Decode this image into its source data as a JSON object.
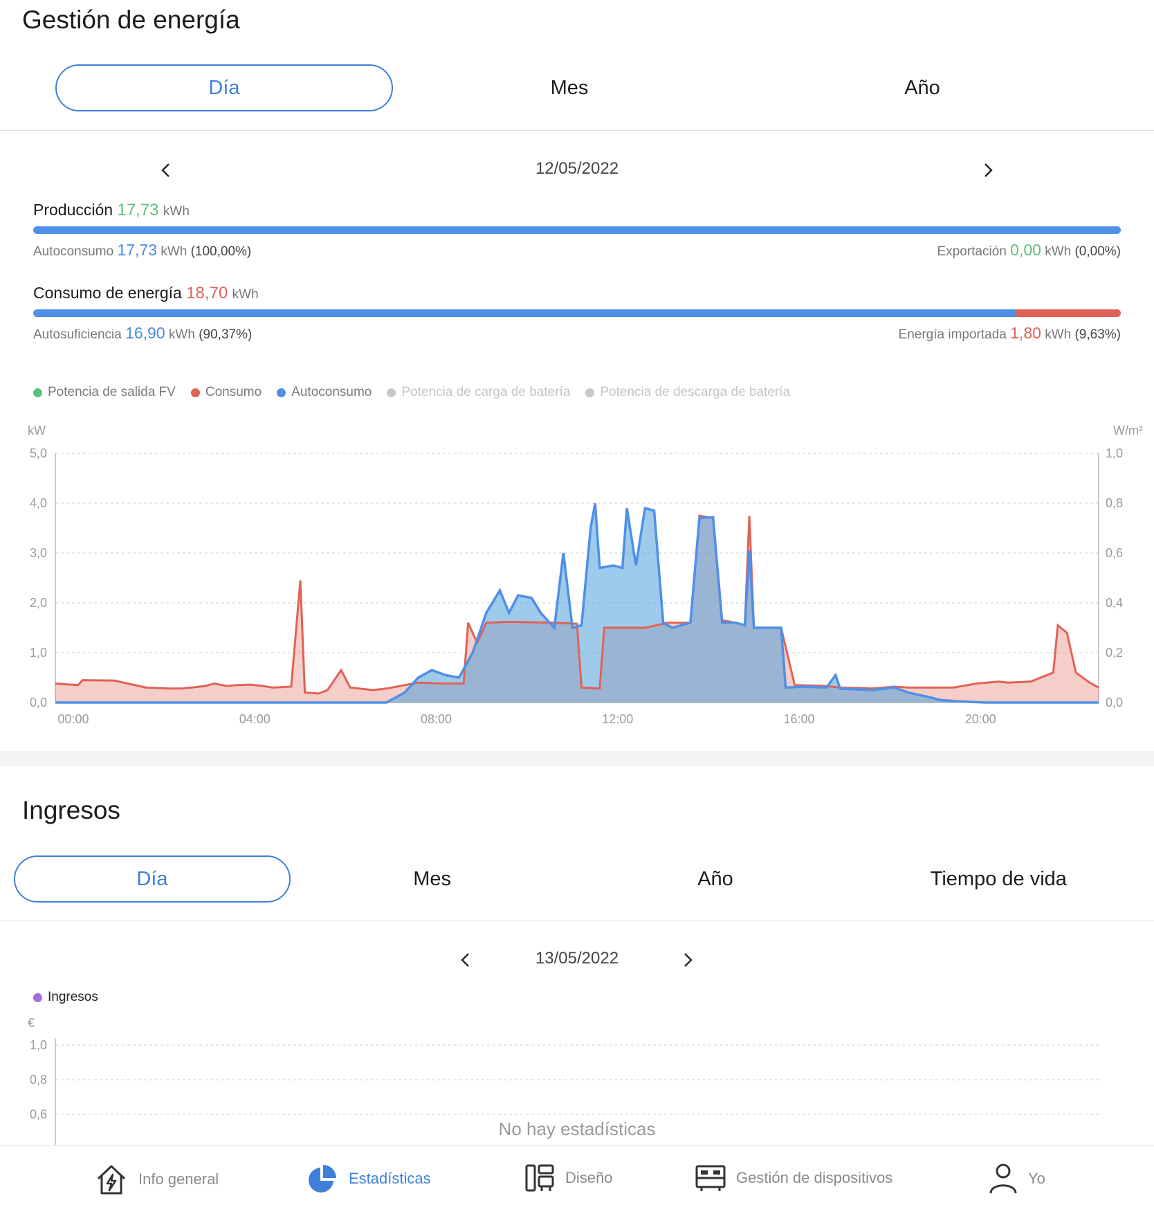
{
  "energy": {
    "title": "Gestión de energía",
    "tabs": [
      "Día",
      "Mes",
      "Año"
    ],
    "date": "12/05/2022",
    "production": {
      "label": "Producción",
      "value": "17,73",
      "unit": "kWh",
      "left": {
        "label": "Autoconsumo",
        "value": "17,73",
        "unit": "kWh",
        "pct": "(100,00%)"
      },
      "right": {
        "label": "Exportación",
        "value": "0,00",
        "unit": "kWh",
        "pct": "(0,00%)"
      },
      "self_fraction": 1.0
    },
    "consumption": {
      "label": "Consumo de energía",
      "value": "18,70",
      "unit": "kWh",
      "left": {
        "label": "Autosuficiencia",
        "value": "16,90",
        "unit": "kWh",
        "pct": "(90,37%)"
      },
      "right": {
        "label": "Energía importada",
        "value": "1,80",
        "unit": "kWh",
        "pct": "(9,63%)"
      },
      "self_fraction": 0.9037
    },
    "legend": [
      {
        "label": "Potencia de salida FV",
        "color": "#5cc27d",
        "active": true
      },
      {
        "label": "Consumo",
        "color": "#e06256",
        "active": true
      },
      {
        "label": "Autoconsumo",
        "color": "#4f8fe8",
        "active": true
      },
      {
        "label": "Potencia de carga de batería",
        "color": "#c8c8c8",
        "active": false
      },
      {
        "label": "Potencia de descarga de batería",
        "color": "#c8c8c8",
        "active": false
      }
    ]
  },
  "chart_data": [
    {
      "type": "area",
      "ylabel": "kW",
      "y2label": "W/m²",
      "ylim": [
        0,
        5
      ],
      "y2lim": [
        0,
        1
      ],
      "yticks": [
        "0,0",
        "1,0",
        "2,0",
        "3,0",
        "4,0",
        "5,0"
      ],
      "y2ticks": [
        "0,0",
        "0,2",
        "0,4",
        "0,6",
        "0,8",
        "1,0"
      ],
      "xticks": [
        "00:00",
        "04:00",
        "08:00",
        "12:00",
        "16:00",
        "20:00"
      ],
      "xlim_hours": [
        0,
        23
      ],
      "grid": true,
      "series": [
        {
          "name": "Consumo",
          "color": "#e06256",
          "points": [
            [
              0,
              0.38
            ],
            [
              0.5,
              0.35
            ],
            [
              0.6,
              0.45
            ],
            [
              1.3,
              0.44
            ],
            [
              1.5,
              0.4
            ],
            [
              1.8,
              0.34
            ],
            [
              2.0,
              0.3
            ],
            [
              2.5,
              0.28
            ],
            [
              2.8,
              0.28
            ],
            [
              3.0,
              0.3
            ],
            [
              3.3,
              0.33
            ],
            [
              3.5,
              0.38
            ],
            [
              3.8,
              0.33
            ],
            [
              4.0,
              0.35
            ],
            [
              4.3,
              0.36
            ],
            [
              4.5,
              0.34
            ],
            [
              4.8,
              0.3
            ],
            [
              5.2,
              0.32
            ],
            [
              5.4,
              2.45
            ],
            [
              5.5,
              0.2
            ],
            [
              5.8,
              0.18
            ],
            [
              6.0,
              0.25
            ],
            [
              6.3,
              0.65
            ],
            [
              6.5,
              0.3
            ],
            [
              7.0,
              0.25
            ],
            [
              7.3,
              0.28
            ],
            [
              7.7,
              0.35
            ],
            [
              8.0,
              0.4
            ],
            [
              8.5,
              0.38
            ],
            [
              9.0,
              0.38
            ],
            [
              9.1,
              1.6
            ],
            [
              9.3,
              1.2
            ],
            [
              9.5,
              1.6
            ],
            [
              10.0,
              1.62
            ],
            [
              11.0,
              1.6
            ],
            [
              11.5,
              1.58
            ],
            [
              11.6,
              0.3
            ],
            [
              12.0,
              0.28
            ],
            [
              12.1,
              1.5
            ],
            [
              13.0,
              1.5
            ],
            [
              13.5,
              1.6
            ],
            [
              14.0,
              1.6
            ],
            [
              14.2,
              3.75
            ],
            [
              14.5,
              3.7
            ],
            [
              14.7,
              1.65
            ],
            [
              15.0,
              1.6
            ],
            [
              15.2,
              1.55
            ],
            [
              15.3,
              3.75
            ],
            [
              15.4,
              1.5
            ],
            [
              16.0,
              1.5
            ],
            [
              16.3,
              0.35
            ],
            [
              17.0,
              0.33
            ],
            [
              17.3,
              0.3
            ],
            [
              18.0,
              0.28
            ],
            [
              18.5,
              0.32
            ],
            [
              18.8,
              0.3
            ],
            [
              19.3,
              0.3
            ],
            [
              19.8,
              0.3
            ],
            [
              20.3,
              0.38
            ],
            [
              20.8,
              0.42
            ],
            [
              21.0,
              0.4
            ],
            [
              21.5,
              0.42
            ],
            [
              22.0,
              0.6
            ],
            [
              22.1,
              1.55
            ],
            [
              22.3,
              1.4
            ],
            [
              22.5,
              0.6
            ],
            [
              22.8,
              0.4
            ],
            [
              23.0,
              0.3
            ]
          ]
        },
        {
          "name": "Autoconsumo",
          "color": "#4f8fe8",
          "points": [
            [
              0,
              0
            ],
            [
              7.3,
              0
            ],
            [
              7.7,
              0.2
            ],
            [
              8.0,
              0.5
            ],
            [
              8.3,
              0.65
            ],
            [
              8.6,
              0.55
            ],
            [
              8.9,
              0.5
            ],
            [
              9.2,
              1.0
            ],
            [
              9.5,
              1.8
            ],
            [
              9.8,
              2.25
            ],
            [
              10.0,
              1.8
            ],
            [
              10.2,
              2.15
            ],
            [
              10.5,
              2.1
            ],
            [
              10.7,
              1.8
            ],
            [
              11.0,
              1.5
            ],
            [
              11.2,
              3.0
            ],
            [
              11.4,
              1.5
            ],
            [
              11.6,
              1.55
            ],
            [
              11.8,
              3.5
            ],
            [
              11.9,
              4.0
            ],
            [
              12.0,
              2.7
            ],
            [
              12.3,
              2.75
            ],
            [
              12.5,
              2.7
            ],
            [
              12.6,
              3.9
            ],
            [
              12.8,
              2.75
            ],
            [
              13.0,
              3.9
            ],
            [
              13.2,
              3.85
            ],
            [
              13.4,
              1.6
            ],
            [
              13.6,
              1.5
            ],
            [
              14.0,
              1.6
            ],
            [
              14.2,
              3.7
            ],
            [
              14.5,
              3.72
            ],
            [
              14.7,
              1.6
            ],
            [
              15.0,
              1.6
            ],
            [
              15.2,
              1.55
            ],
            [
              15.3,
              3.05
            ],
            [
              15.4,
              1.5
            ],
            [
              16.0,
              1.5
            ],
            [
              16.1,
              0.3
            ],
            [
              16.5,
              0.32
            ],
            [
              17.0,
              0.3
            ],
            [
              17.2,
              0.55
            ],
            [
              17.3,
              0.28
            ],
            [
              18.0,
              0.25
            ],
            [
              18.5,
              0.3
            ],
            [
              18.8,
              0.2
            ],
            [
              19.3,
              0.1
            ],
            [
              19.5,
              0.05
            ],
            [
              20.0,
              0.02
            ],
            [
              20.5,
              0.0
            ],
            [
              23.0,
              0.0
            ]
          ]
        }
      ]
    },
    {
      "type": "bar",
      "ylabel": "€",
      "yticks": [
        "0,6",
        "0,8",
        "1,0"
      ],
      "series": [
        {
          "name": "Ingresos",
          "color": "#a66be0",
          "values": []
        }
      ]
    }
  ],
  "income": {
    "title": "Ingresos",
    "tabs": [
      "Día",
      "Mes",
      "Año",
      "Tiempo de vida"
    ],
    "date": "13/05/2022",
    "legend_label": "Ingresos",
    "legend_color": "#a66be0",
    "empty_text": "No hay estadísticas"
  },
  "nav": [
    {
      "label": "Info general",
      "icon": "house-bolt-icon",
      "active": false
    },
    {
      "label": "Estadísticas",
      "icon": "pie-chart-icon",
      "active": true
    },
    {
      "label": "Diseño",
      "icon": "layout-icon",
      "active": false
    },
    {
      "label": "Gestión de dispositivos",
      "icon": "device-icon",
      "active": false
    },
    {
      "label": "Yo",
      "icon": "user-icon",
      "active": false
    }
  ]
}
